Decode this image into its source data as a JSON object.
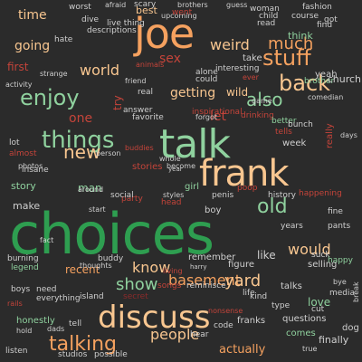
{
  "palette": {
    "background": "#2b2b2b",
    "green": "#2e9e50",
    "light_green": "#8fd19e",
    "orange": "#f5a15f",
    "peach": "#f8c690",
    "red": "#c4443a",
    "dark_red": "#8b2a2a",
    "grey": "#cfcfcf"
  },
  "words": [
    {
      "text": "choices",
      "color": "#2e9e50",
      "v": false
    },
    {
      "text": "frank",
      "color": "#f8c690",
      "v": false
    },
    {
      "text": "talk",
      "color": "#8fd19e",
      "v": false
    },
    {
      "text": "joe",
      "color": "#f5a15f",
      "v": false
    },
    {
      "text": "discuss",
      "color": "#f8c690",
      "v": false
    },
    {
      "text": "things",
      "color": "#8fd19e",
      "v": false
    },
    {
      "text": "talking",
      "color": "#f5a15f",
      "v": false
    },
    {
      "text": "stuff",
      "color": "#f5a15f",
      "v": false
    },
    {
      "text": "back",
      "color": "#f8c690",
      "v": false
    },
    {
      "text": "enjoy",
      "color": "#8fd19e",
      "v": false
    },
    {
      "text": "new",
      "color": "#f8c690",
      "v": false
    },
    {
      "text": "also",
      "color": "#8fd19e",
      "v": false
    },
    {
      "text": "old",
      "color": "#8fd19e",
      "v": false
    },
    {
      "text": "much",
      "color": "#f5a15f",
      "v": false
    },
    {
      "text": "weird",
      "color": "#f8c690",
      "v": false
    },
    {
      "text": "world",
      "color": "#f8c690",
      "v": false
    },
    {
      "text": "show",
      "color": "#8fd19e",
      "v": false
    },
    {
      "text": "basement",
      "color": "#f5a15f",
      "v": false
    },
    {
      "text": "people",
      "color": "#f8c690",
      "v": false
    },
    {
      "text": "yard",
      "color": "#f8c690",
      "v": false
    },
    {
      "text": "know",
      "color": "#f8c690",
      "v": false
    },
    {
      "text": "would",
      "color": "#f8c690",
      "v": false
    },
    {
      "text": "time",
      "color": "#f8c690",
      "v": false
    },
    {
      "text": "going",
      "color": "#f8c690",
      "v": false
    },
    {
      "text": "one",
      "color": "#c4443a",
      "v": false
    },
    {
      "text": "getting",
      "color": "#f8c690",
      "v": false
    },
    {
      "text": "wild",
      "color": "#f8c690",
      "v": false
    },
    {
      "text": "think",
      "color": "#8fd19e",
      "v": false
    },
    {
      "text": "first",
      "color": "#c4443a",
      "v": false
    },
    {
      "text": "recent",
      "color": "#f5a15f",
      "v": false
    },
    {
      "text": "make",
      "color": "#cfcfcf",
      "v": false
    },
    {
      "text": "man",
      "color": "#8fd19e",
      "v": false
    },
    {
      "text": "stories",
      "color": "#c4443a",
      "v": false
    },
    {
      "text": "actually",
      "color": "#f5a15f",
      "v": false
    },
    {
      "text": "sex",
      "color": "#c4443a",
      "v": false
    },
    {
      "text": "love",
      "color": "#8fd19e",
      "v": false
    },
    {
      "text": "yeah",
      "color": "#cfcfcf",
      "v": false
    },
    {
      "text": "like",
      "color": "#cfcfcf",
      "v": false
    },
    {
      "text": "let",
      "color": "#c4443a",
      "v": false
    },
    {
      "text": "try",
      "color": "#c4443a",
      "v": true
    },
    {
      "text": "best",
      "color": "#f8c690",
      "v": false
    },
    {
      "text": "take",
      "color": "#cfcfcf",
      "v": false
    },
    {
      "text": "worst",
      "color": "#cfcfcf",
      "v": false
    },
    {
      "text": "brother",
      "color": "#8fd19e",
      "v": false
    },
    {
      "text": "talks",
      "color": "#cfcfcf",
      "v": false
    },
    {
      "text": "figure",
      "color": "#cfcfcf",
      "v": false
    },
    {
      "text": "selling",
      "color": "#cfcfcf",
      "v": false
    },
    {
      "text": "remember",
      "color": "#cfcfcf",
      "v": false
    },
    {
      "text": "kind",
      "color": "#cfcfcf",
      "v": false
    },
    {
      "text": "questions",
      "color": "#cfcfcf",
      "v": false
    },
    {
      "text": "comes",
      "color": "#8fd19e",
      "v": false
    },
    {
      "text": "finally",
      "color": "#cfcfcf",
      "v": false
    },
    {
      "text": "franks",
      "color": "#cfcfcf",
      "v": false
    },
    {
      "text": "dog",
      "color": "#cfcfcf",
      "v": false
    },
    {
      "text": "honestly",
      "color": "#8fd19e",
      "v": false
    },
    {
      "text": "boy",
      "color": "#cfcfcf",
      "v": false
    },
    {
      "text": "week",
      "color": "#cfcfcf",
      "v": false
    },
    {
      "text": "party",
      "color": "#c4443a",
      "v": false
    },
    {
      "text": "head",
      "color": "#c4443a",
      "v": false
    },
    {
      "text": "poop",
      "color": "#c4443a",
      "v": false
    },
    {
      "text": "story",
      "color": "#8fd19e",
      "v": false
    },
    {
      "text": "hate",
      "color": "#cfcfcf",
      "v": false
    },
    {
      "text": "dive",
      "color": "#cfcfcf",
      "v": false
    },
    {
      "text": "live thing",
      "color": "#cfcfcf",
      "v": false
    },
    {
      "text": "descriptions",
      "color": "#cfcfcf",
      "v": false
    },
    {
      "text": "scary",
      "color": "#cfcfcf",
      "v": false
    },
    {
      "text": "brothers",
      "color": "#cfcfcf",
      "v": false
    },
    {
      "text": "afraid",
      "color": "#cfcfcf",
      "v": false
    },
    {
      "text": "upcoming",
      "color": "#cfcfcf",
      "v": false
    },
    {
      "text": "went",
      "color": "#c4443a",
      "v": false
    },
    {
      "text": "woman",
      "color": "#cfcfcf",
      "v": false
    },
    {
      "text": "guess",
      "color": "#cfcfcf",
      "v": false
    },
    {
      "text": "fashion",
      "color": "#cfcfcf",
      "v": false
    },
    {
      "text": "course",
      "color": "#cfcfcf",
      "v": false
    },
    {
      "text": "child",
      "color": "#cfcfcf",
      "v": false
    },
    {
      "text": "read",
      "color": "#cfcfcf",
      "v": false
    },
    {
      "text": "find",
      "color": "#cfcfcf",
      "v": false
    },
    {
      "text": "got",
      "color": "#cfcfcf",
      "v": false
    },
    {
      "text": "animals",
      "color": "#c4443a",
      "v": false
    },
    {
      "text": "alone",
      "color": "#cfcfcf",
      "v": false
    },
    {
      "text": "interesting",
      "color": "#cfcfcf",
      "v": false
    },
    {
      "text": "could",
      "color": "#cfcfcf",
      "v": false
    },
    {
      "text": "ever",
      "color": "#c4443a",
      "v": false
    },
    {
      "text": "strange",
      "color": "#cfcfcf",
      "v": false
    },
    {
      "text": "friend",
      "color": "#cfcfcf",
      "v": false
    },
    {
      "text": "real",
      "color": "#cfcfcf",
      "v": false
    },
    {
      "text": "game",
      "color": "#cfcfcf",
      "v": false
    },
    {
      "text": "answer",
      "color": "#cfcfcf",
      "v": false
    },
    {
      "text": "inspirational",
      "color": "#c4443a",
      "v": false
    },
    {
      "text": "forgot",
      "color": "#cfcfcf",
      "v": false
    },
    {
      "text": "drinking",
      "color": "#c4443a",
      "v": false
    },
    {
      "text": "favorite",
      "color": "#cfcfcf",
      "v": false
    },
    {
      "text": "better",
      "color": "#8fd19e",
      "v": false
    },
    {
      "text": "comedian",
      "color": "#cfcfcf",
      "v": false
    },
    {
      "text": "bunch",
      "color": "#cfcfcf",
      "v": false
    },
    {
      "text": "tells",
      "color": "#c4443a",
      "v": false
    },
    {
      "text": "church",
      "color": "#cfcfcf",
      "v": false
    },
    {
      "text": "really",
      "color": "#c4443a",
      "v": true
    },
    {
      "text": "days",
      "color": "#cfcfcf",
      "v": false
    },
    {
      "text": "activity",
      "color": "#cfcfcf",
      "v": false
    },
    {
      "text": "buddies",
      "color": "#c4443a",
      "v": false
    },
    {
      "text": "become",
      "color": "#cfcfcf",
      "v": false
    },
    {
      "text": "whole",
      "color": "#cfcfcf",
      "v": false
    },
    {
      "text": "person",
      "color": "#cfcfcf",
      "v": false
    },
    {
      "text": "almost",
      "color": "#c4443a",
      "v": false
    },
    {
      "text": "lot",
      "color": "#cfcfcf",
      "v": false
    },
    {
      "text": "insane",
      "color": "#cfcfcf",
      "v": false
    },
    {
      "text": "photos",
      "color": "#cfcfcf",
      "v": false
    },
    {
      "text": "year",
      "color": "#cfcfcf",
      "v": false
    },
    {
      "text": "around",
      "color": "#cfcfcf",
      "v": false
    },
    {
      "text": "social",
      "color": "#cfcfcf",
      "v": false
    },
    {
      "text": "girl",
      "color": "#8fd19e",
      "v": false
    },
    {
      "text": "styles",
      "color": "#cfcfcf",
      "v": false
    },
    {
      "text": "penis",
      "color": "#cfcfcf",
      "v": false
    },
    {
      "text": "history",
      "color": "#cfcfcf",
      "v": false
    },
    {
      "text": "happening",
      "color": "#c4443a",
      "v": false
    },
    {
      "text": "start",
      "color": "#cfcfcf",
      "v": false
    },
    {
      "text": "years",
      "color": "#cfcfcf",
      "v": false
    },
    {
      "text": "fact",
      "color": "#cfcfcf",
      "v": false
    },
    {
      "text": "buddy",
      "color": "#cfcfcf",
      "v": false
    },
    {
      "text": "thoughts",
      "color": "#cfcfcf",
      "v": false
    },
    {
      "text": "harry",
      "color": "#cfcfcf",
      "v": false
    },
    {
      "text": "living",
      "color": "#c4443a",
      "v": false
    },
    {
      "text": "suck",
      "color": "#cfcfcf",
      "v": false
    },
    {
      "text": "happy",
      "color": "#8fd19e",
      "v": false
    },
    {
      "text": "legend",
      "color": "#8fd19e",
      "v": false
    },
    {
      "text": "burning",
      "color": "#cfcfcf",
      "v": false
    },
    {
      "text": "boys",
      "color": "#cfcfcf",
      "v": false
    },
    {
      "text": "need",
      "color": "#cfcfcf",
      "v": false
    },
    {
      "text": "everything",
      "color": "#cfcfcf",
      "v": false
    },
    {
      "text": "island",
      "color": "#cfcfcf",
      "v": false
    },
    {
      "text": "secret",
      "color": "#8b2a2a",
      "v": false
    },
    {
      "text": "songs",
      "color": "#c4443a",
      "v": false
    },
    {
      "text": "reminisce",
      "color": "#cfcfcf",
      "v": false
    },
    {
      "text": "life",
      "color": "#cfcfcf",
      "v": false
    },
    {
      "text": "type",
      "color": "#cfcfcf",
      "v": false
    },
    {
      "text": "media",
      "color": "#cfcfcf",
      "v": false
    },
    {
      "text": "dads",
      "color": "#cfcfcf",
      "v": false
    },
    {
      "text": "tell",
      "color": "#cfcfcf",
      "v": false
    },
    {
      "text": "code",
      "color": "#cfcfcf",
      "v": false
    },
    {
      "text": "hear",
      "color": "#cfcfcf",
      "v": false
    },
    {
      "text": "listen",
      "color": "#cfcfcf",
      "v": false
    },
    {
      "text": "studios",
      "color": "#cfcfcf",
      "v": false
    },
    {
      "text": "possible",
      "color": "#cfcfcf",
      "v": false
    },
    {
      "text": "true",
      "color": "#cfcfcf",
      "v": false
    },
    {
      "text": "pants",
      "color": "#cfcfcf",
      "v": false
    },
    {
      "text": "fine",
      "color": "#cfcfcf",
      "v": false
    },
    {
      "text": "cut",
      "color": "#cfcfcf",
      "v": false
    },
    {
      "text": "bye",
      "color": "#cfcfcf",
      "v": false
    },
    {
      "text": "nonsense",
      "color": "#c4443a",
      "v": false
    },
    {
      "text": "rails",
      "color": "#c4443a",
      "v": false
    },
    {
      "text": "hold",
      "color": "#cfcfcf",
      "v": false
    },
    {
      "text": "break",
      "color": "#cfcfcf",
      "v": true
    }
  ]
}
